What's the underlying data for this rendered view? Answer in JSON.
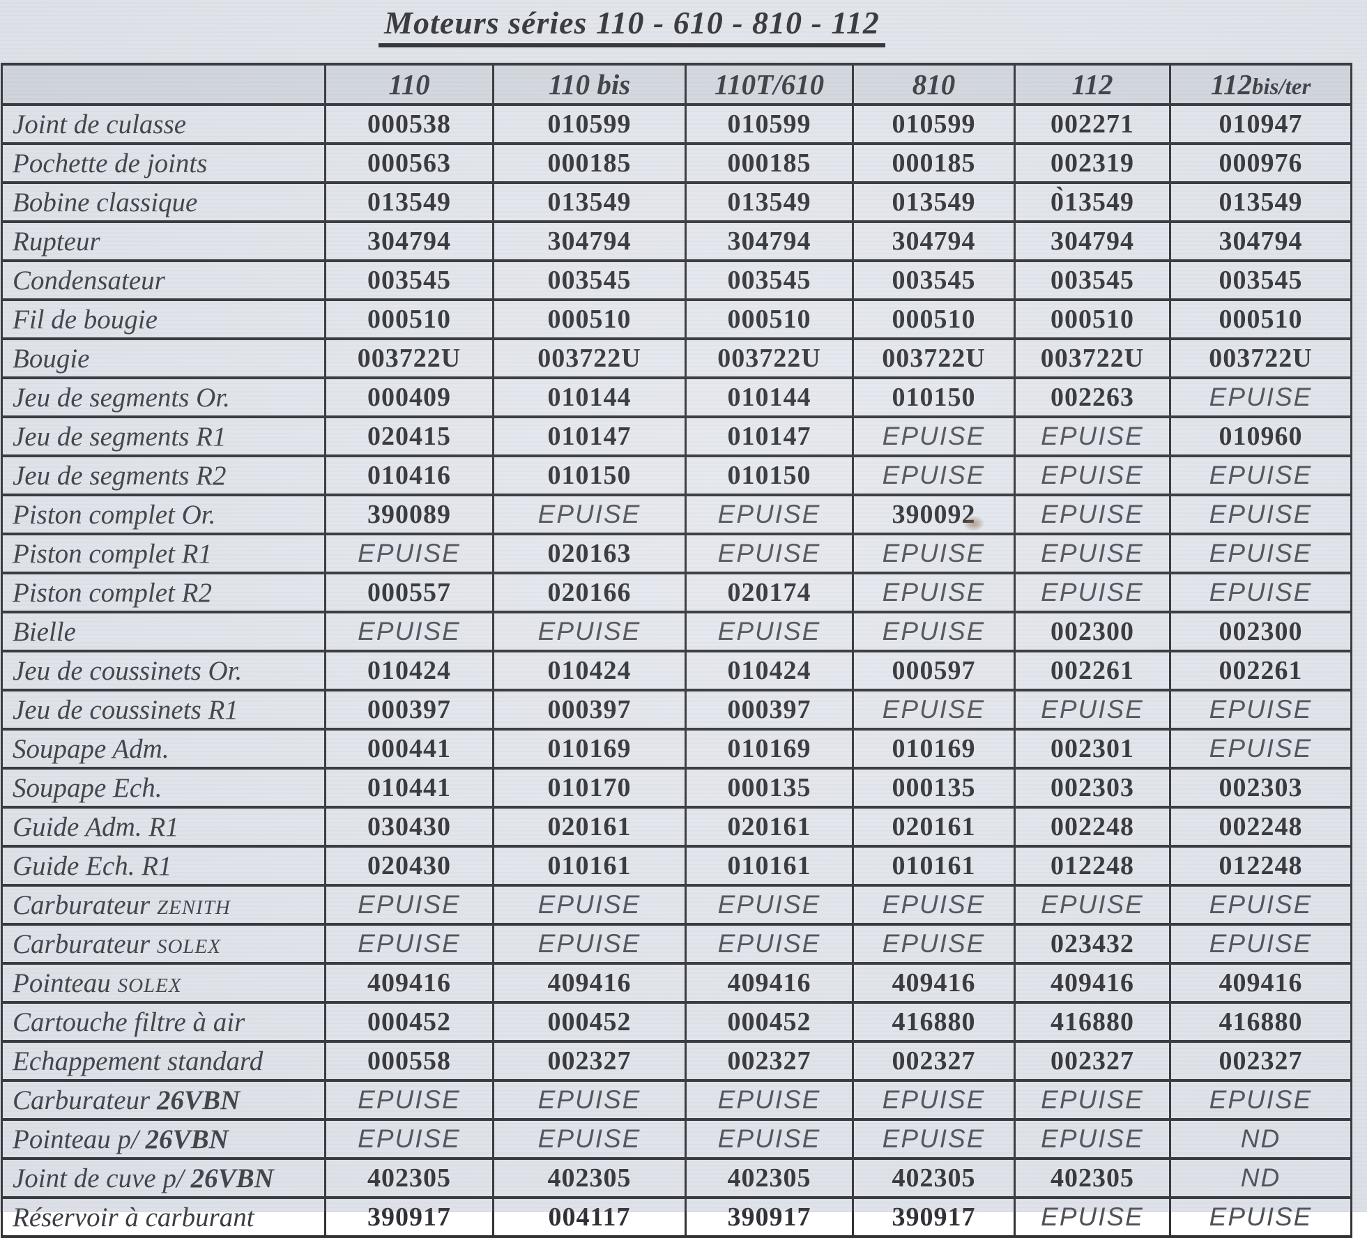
{
  "page": {
    "title": "Moteurs séries 110 - 610 - 810 - 112",
    "kind": "scanned parts cross-reference table"
  },
  "colors": {
    "paper": "#e5e8ee",
    "ink": "#35363a",
    "muted": "#4e5056",
    "border": "#323337"
  },
  "status_legend": {
    "out_of_stock": "EPUISE",
    "not_available": "ND"
  },
  "table": {
    "columns": [
      {
        "label": ""
      },
      {
        "label": "110"
      },
      {
        "label": "110 bis"
      },
      {
        "label": "110T/610"
      },
      {
        "label": "810"
      },
      {
        "label": "112"
      },
      {
        "label": "112",
        "suffix": "bis/ter"
      }
    ],
    "rows": [
      {
        "label_parts": [
          {
            "t": "Joint de culasse"
          }
        ],
        "values": [
          "000538",
          "010599",
          "010599",
          "010599",
          "002271",
          "010947"
        ]
      },
      {
        "label_parts": [
          {
            "t": "Pochette de joints"
          }
        ],
        "values": [
          "000563",
          "000185",
          "000185",
          "000185",
          "002319",
          "000976"
        ]
      },
      {
        "label_parts": [
          {
            "t": "Bobine classique"
          }
        ],
        "values": [
          "013549",
          "013549",
          "013549",
          "013549",
          "0̀13549",
          "013549"
        ]
      },
      {
        "label_parts": [
          {
            "t": "Rupteur"
          }
        ],
        "values": [
          "304794",
          "304794",
          "304794",
          "304794",
          "304794",
          "304794"
        ]
      },
      {
        "label_parts": [
          {
            "t": "Condensateur"
          }
        ],
        "values": [
          "003545",
          "003545",
          "003545",
          "003545",
          "003545",
          "003545"
        ]
      },
      {
        "label_parts": [
          {
            "t": "Fil de bougie"
          }
        ],
        "values": [
          "000510",
          "000510",
          "000510",
          "000510",
          "000510",
          "000510"
        ]
      },
      {
        "label_parts": [
          {
            "t": "Bougie"
          }
        ],
        "values": [
          "003722U",
          "003722U",
          "003722U",
          "003722U",
          "003722U",
          "003722U"
        ]
      },
      {
        "label_parts": [
          {
            "t": "Jeu de segments Or."
          }
        ],
        "values": [
          "000409",
          "010144",
          "010144",
          "010150",
          "002263",
          "EPUISE"
        ]
      },
      {
        "label_parts": [
          {
            "t": "Jeu de segments R1"
          }
        ],
        "values": [
          "020415",
          "010147",
          "010147",
          "EPUISE",
          "EPUISE",
          "010960"
        ]
      },
      {
        "label_parts": [
          {
            "t": "Jeu de segments R2"
          }
        ],
        "values": [
          "010416",
          "010150",
          "010150",
          "EPUISE",
          "EPUISE",
          "EPUISE"
        ]
      },
      {
        "label_parts": [
          {
            "t": "Piston complet Or."
          }
        ],
        "values": [
          "390089",
          "EPUISE",
          "EPUISE",
          "390092",
          "EPUISE",
          "EPUISE"
        ]
      },
      {
        "label_parts": [
          {
            "t": "Piston complet R1"
          }
        ],
        "values": [
          "EPUISE",
          "020163",
          "EPUISE",
          "EPUISE",
          "EPUISE",
          "EPUISE"
        ]
      },
      {
        "label_parts": [
          {
            "t": "Piston complet R2"
          }
        ],
        "values": [
          "000557",
          "020166",
          "020174",
          "EPUISE",
          "EPUISE",
          "EPUISE"
        ]
      },
      {
        "label_parts": [
          {
            "t": "Bielle"
          }
        ],
        "values": [
          "EPUISE",
          "EPUISE",
          "EPUISE",
          "EPUISE",
          "002300",
          "002300"
        ]
      },
      {
        "label_parts": [
          {
            "t": "Jeu de coussinets Or."
          }
        ],
        "values": [
          "010424",
          "010424",
          "010424",
          "000597",
          "002261",
          "002261"
        ]
      },
      {
        "label_parts": [
          {
            "t": "Jeu de coussinets R1"
          }
        ],
        "values": [
          "000397",
          "000397",
          "000397",
          "EPUISE",
          "EPUISE",
          "EPUISE"
        ]
      },
      {
        "label_parts": [
          {
            "t": "Soupape Adm."
          }
        ],
        "values": [
          "000441",
          "010169",
          "010169",
          "010169",
          "002301",
          "EPUISE"
        ]
      },
      {
        "label_parts": [
          {
            "t": "Soupape Ech."
          }
        ],
        "values": [
          "010441",
          "010170",
          "000135",
          "000135",
          "002303",
          "002303"
        ]
      },
      {
        "label_parts": [
          {
            "t": "Guide Adm. R1"
          }
        ],
        "values": [
          "030430",
          "020161",
          "020161",
          "020161",
          "002248",
          "002248"
        ]
      },
      {
        "label_parts": [
          {
            "t": "Guide Ech. R1"
          }
        ],
        "values": [
          "020430",
          "010161",
          "010161",
          "010161",
          "012248",
          "012248"
        ]
      },
      {
        "label_parts": [
          {
            "t": "Carburateur "
          },
          {
            "t": "ZENITH",
            "s": "sc"
          }
        ],
        "values": [
          "EPUISE",
          "EPUISE",
          "EPUISE",
          "EPUISE",
          "EPUISE",
          "EPUISE"
        ]
      },
      {
        "label_parts": [
          {
            "t": "Carburateur "
          },
          {
            "t": "SOLEX",
            "s": "sc"
          }
        ],
        "values": [
          "EPUISE",
          "EPUISE",
          "EPUISE",
          "EPUISE",
          "023432",
          "EPUISE"
        ]
      },
      {
        "label_parts": [
          {
            "t": "Pointeau "
          },
          {
            "t": "SOLEX",
            "s": "sc"
          }
        ],
        "values": [
          "409416",
          "409416",
          "409416",
          "409416",
          "409416",
          "409416"
        ]
      },
      {
        "label_parts": [
          {
            "t": "Cartouche filtre à air"
          }
        ],
        "values": [
          "000452",
          "000452",
          "000452",
          "416880",
          "416880",
          "416880"
        ]
      },
      {
        "label_parts": [
          {
            "t": "Echappement standard"
          }
        ],
        "values": [
          "000558",
          "002327",
          "002327",
          "002327",
          "002327",
          "002327"
        ]
      },
      {
        "label_parts": [
          {
            "t": "Carburateur "
          },
          {
            "t": "26VBN",
            "s": "b"
          }
        ],
        "values": [
          "EPUISE",
          "EPUISE",
          "EPUISE",
          "EPUISE",
          "EPUISE",
          "EPUISE"
        ]
      },
      {
        "label_parts": [
          {
            "t": "Pointeau p/ "
          },
          {
            "t": "26VBN",
            "s": "b"
          }
        ],
        "values": [
          "EPUISE",
          "EPUISE",
          "EPUISE",
          "EPUISE",
          "EPUISE",
          "ND"
        ]
      },
      {
        "label_parts": [
          {
            "t": "Joint de cuve p/ "
          },
          {
            "t": "26VBN",
            "s": "b"
          }
        ],
        "values": [
          "402305",
          "402305",
          "402305",
          "402305",
          "402305",
          "ND"
        ]
      },
      {
        "label_parts": [
          {
            "t": "Réservoir à carburant"
          }
        ],
        "values": [
          "390917",
          "004117",
          "390917",
          "390917",
          "EPUISE",
          "EPUISE"
        ]
      }
    ]
  }
}
